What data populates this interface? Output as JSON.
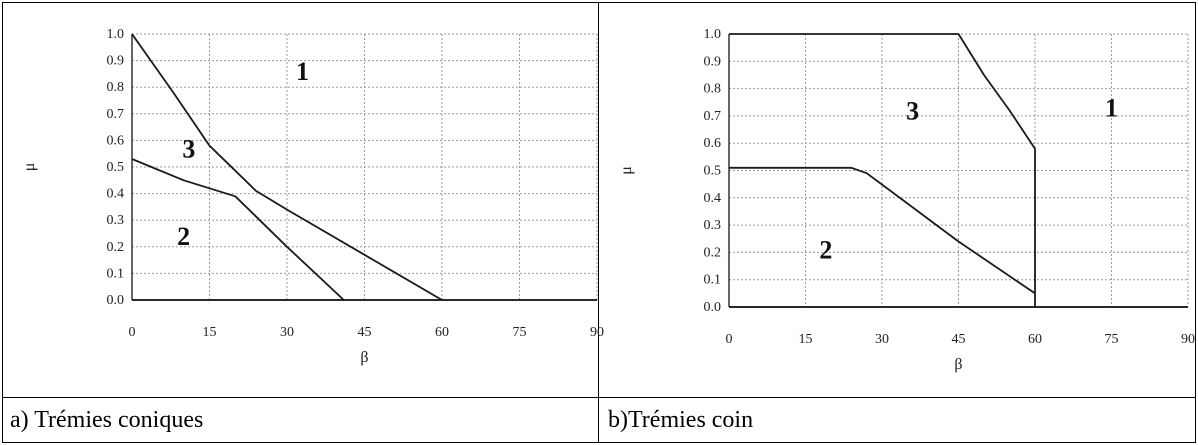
{
  "chart_data": [
    {
      "type": "line",
      "caption": "a) Trémies coniques",
      "xlabel": "β",
      "ylabel": "μ",
      "xlim": [
        0,
        90
      ],
      "ylim": [
        0,
        1
      ],
      "xticks": [
        "0",
        "15",
        "30",
        "45",
        "60",
        "75",
        "90"
      ],
      "yticks": [
        "0.0",
        "0.1",
        "0.2",
        "0.3",
        "0.4",
        "0.5",
        "0.6",
        "0.7",
        "0.8",
        "0.9",
        "1.0"
      ],
      "grid": true,
      "series": [
        {
          "x": [
            0,
            8,
            15,
            24,
            30,
            45,
            60
          ],
          "y": [
            1.0,
            0.78,
            0.58,
            0.41,
            0.34,
            0.17,
            0.0
          ]
        },
        {
          "x": [
            0,
            10,
            20,
            30,
            41
          ],
          "y": [
            0.53,
            0.45,
            0.39,
            0.2,
            0.0
          ]
        },
        {
          "x": [
            0,
            90
          ],
          "y": [
            0.0,
            0.0
          ]
        }
      ],
      "annotations": [
        {
          "text": "1",
          "x": 33,
          "y": 0.86
        },
        {
          "text": "3",
          "x": 11,
          "y": 0.57
        },
        {
          "text": "2",
          "x": 10,
          "y": 0.24
        }
      ]
    },
    {
      "type": "line",
      "caption": "b)Trémies coin",
      "xlabel": "β",
      "ylabel": "μ",
      "xlim": [
        0,
        90
      ],
      "ylim": [
        0,
        1
      ],
      "xticks": [
        "0",
        "15",
        "30",
        "45",
        "60",
        "75",
        "90"
      ],
      "yticks": [
        "0.0",
        "0.1",
        "0.2",
        "0.3",
        "0.4",
        "0.5",
        "0.6",
        "0.7",
        "0.8",
        "0.9",
        "1.0"
      ],
      "grid": true,
      "series": [
        {
          "x": [
            0,
            45,
            50,
            55,
            60,
            60,
            60
          ],
          "y": [
            1.0,
            1.0,
            0.85,
            0.72,
            0.58,
            0.05,
            0.0
          ]
        },
        {
          "x": [
            0,
            24,
            27,
            45,
            60
          ],
          "y": [
            0.51,
            0.51,
            0.49,
            0.24,
            0.05
          ]
        },
        {
          "x": [
            0,
            90
          ],
          "y": [
            0.0,
            0.0
          ]
        }
      ],
      "annotations": [
        {
          "text": "1",
          "x": 75,
          "y": 0.73
        },
        {
          "text": "3",
          "x": 36,
          "y": 0.72
        },
        {
          "text": "2",
          "x": 19,
          "y": 0.21
        }
      ]
    }
  ]
}
